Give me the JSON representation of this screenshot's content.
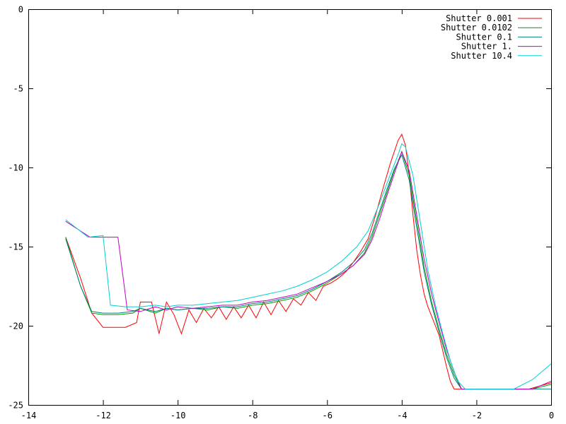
{
  "chart_data": {
    "type": "line",
    "title": "",
    "xlabel": "",
    "ylabel": "",
    "xlim": [
      -14,
      0
    ],
    "ylim": [
      -25,
      0
    ],
    "grid": false,
    "legend_position": "top-right",
    "x_ticks": [
      -14,
      -12,
      -10,
      -8,
      -6,
      -4,
      -2,
      0
    ],
    "y_ticks": [
      0,
      -5,
      -10,
      -15,
      -20,
      -25
    ],
    "x_tick_labels": [
      "-14",
      "-12",
      "-10",
      "-8",
      "-6",
      "-4",
      "-2",
      "0"
    ],
    "y_tick_labels": [
      "0",
      "-5",
      "-10",
      "-15",
      "-20",
      "-25"
    ],
    "series": [
      {
        "name": "Shutter 0.001",
        "color": "#ff0000",
        "x": [
          -13.0,
          -12.6,
          -12.3,
          -12.0,
          -11.8,
          -11.4,
          -11.1,
          -11.0,
          -10.7,
          -10.5,
          -10.3,
          -10.1,
          -9.9,
          -9.7,
          -9.5,
          -9.3,
          -9.1,
          -8.9,
          -8.7,
          -8.5,
          -8.3,
          -8.1,
          -7.9,
          -7.7,
          -7.5,
          -7.3,
          -7.1,
          -6.9,
          -6.7,
          -6.5,
          -6.3,
          -6.1,
          -5.9,
          -5.7,
          -5.5,
          -5.3,
          -5.1,
          -4.9,
          -4.7,
          -4.5,
          -4.3,
          -4.1,
          -4.0,
          -3.9,
          -3.8,
          -3.7,
          -3.6,
          -3.5,
          -3.4,
          -3.3,
          -3.2,
          -3.1,
          -3.0,
          -2.9,
          -2.8,
          -2.7,
          -2.6,
          -2.4,
          -2.2,
          -1.5,
          -1.0,
          -0.6,
          0.0
        ],
        "y": [
          -14.4,
          -17.0,
          -19.2,
          -20.1,
          -20.1,
          -20.1,
          -19.8,
          -18.5,
          -18.5,
          -20.5,
          -18.5,
          -19.3,
          -20.5,
          -19.0,
          -19.8,
          -18.9,
          -19.5,
          -18.8,
          -19.6,
          -18.8,
          -19.5,
          -18.7,
          -19.5,
          -18.5,
          -19.3,
          -18.4,
          -19.1,
          -18.3,
          -18.7,
          -17.9,
          -18.4,
          -17.5,
          -17.3,
          -17.0,
          -16.6,
          -16.0,
          -15.3,
          -14.5,
          -13.0,
          -11.3,
          -9.7,
          -8.3,
          -7.9,
          -8.6,
          -10.5,
          -13.0,
          -15.2,
          -16.8,
          -18.0,
          -18.8,
          -19.4,
          -20.0,
          -20.6,
          -21.6,
          -22.6,
          -23.5,
          -24.0,
          -24.0,
          -24.0,
          -24.0,
          -24.0,
          -24.0,
          -23.6
        ]
      },
      {
        "name": "Shutter 0.0102",
        "color": "#00a000",
        "x": [
          -13.0,
          -12.6,
          -12.3,
          -12.0,
          -11.6,
          -11.2,
          -11.0,
          -10.6,
          -10.3,
          -10.0,
          -9.6,
          -9.2,
          -8.8,
          -8.4,
          -8.0,
          -7.6,
          -7.2,
          -6.8,
          -6.4,
          -6.0,
          -5.6,
          -5.3,
          -5.0,
          -4.8,
          -4.6,
          -4.4,
          -4.2,
          -4.0,
          -3.8,
          -3.6,
          -3.4,
          -3.2,
          -3.0,
          -2.8,
          -2.6,
          -2.4,
          -1.5,
          -0.5,
          0.0
        ],
        "y": [
          -14.4,
          -17.5,
          -19.2,
          -19.3,
          -19.3,
          -19.2,
          -18.9,
          -19.2,
          -18.9,
          -19.0,
          -18.9,
          -19.0,
          -18.8,
          -18.9,
          -18.7,
          -18.6,
          -18.4,
          -18.2,
          -17.8,
          -17.3,
          -16.7,
          -16.2,
          -15.4,
          -14.4,
          -13.0,
          -11.6,
          -10.2,
          -9.0,
          -10.5,
          -13.4,
          -16.3,
          -18.5,
          -20.2,
          -21.8,
          -23.1,
          -24.0,
          -24.0,
          -24.0,
          -23.7
        ]
      },
      {
        "name": "Shutter 0.1",
        "color": "#008080",
        "x": [
          -13.0,
          -12.6,
          -12.3,
          -12.0,
          -11.6,
          -11.2,
          -11.0,
          -10.6,
          -10.3,
          -10.0,
          -9.6,
          -9.2,
          -8.8,
          -8.4,
          -8.0,
          -7.6,
          -7.2,
          -6.8,
          -6.4,
          -6.0,
          -5.6,
          -5.3,
          -5.0,
          -4.8,
          -4.6,
          -4.4,
          -4.2,
          -4.0,
          -3.8,
          -3.6,
          -3.4,
          -3.2,
          -3.0,
          -2.8,
          -2.6,
          -2.4,
          -1.5,
          -0.5,
          0.0
        ],
        "y": [
          -14.5,
          -17.5,
          -19.1,
          -19.2,
          -19.2,
          -19.1,
          -18.9,
          -19.1,
          -18.9,
          -19.0,
          -18.9,
          -18.9,
          -18.8,
          -18.8,
          -18.6,
          -18.5,
          -18.3,
          -18.1,
          -17.7,
          -17.2,
          -16.6,
          -16.0,
          -15.2,
          -14.2,
          -12.8,
          -11.4,
          -10.1,
          -9.2,
          -10.8,
          -13.8,
          -16.6,
          -18.7,
          -20.4,
          -22.0,
          -23.3,
          -24.0,
          -24.0,
          -24.0,
          -24.0
        ]
      },
      {
        "name": "Shutter 1.",
        "color": "#c000c0",
        "x": [
          -13.0,
          -12.35,
          -11.6,
          -11.35,
          -11.0,
          -10.6,
          -10.3,
          -10.0,
          -9.6,
          -9.2,
          -8.8,
          -8.4,
          -8.0,
          -7.6,
          -7.2,
          -6.8,
          -6.4,
          -6.0,
          -5.6,
          -5.3,
          -5.0,
          -4.8,
          -4.6,
          -4.4,
          -4.2,
          -4.0,
          -3.8,
          -3.6,
          -3.4,
          -3.2,
          -3.0,
          -2.8,
          -2.6,
          -2.4,
          -1.5,
          -0.5,
          0.0
        ],
        "y": [
          -13.4,
          -14.4,
          -14.4,
          -19.0,
          -19.1,
          -18.8,
          -19.0,
          -18.8,
          -18.9,
          -18.8,
          -18.7,
          -18.7,
          -18.5,
          -18.4,
          -18.2,
          -18.0,
          -17.6,
          -17.2,
          -16.7,
          -16.2,
          -15.5,
          -14.6,
          -13.3,
          -11.8,
          -10.4,
          -9.0,
          -10.2,
          -13.0,
          -15.8,
          -18.0,
          -19.8,
          -21.5,
          -22.9,
          -24.0,
          -24.0,
          -24.0,
          -23.5
        ]
      },
      {
        "name": "Shutter 10.4",
        "color": "#00d0d0",
        "x": [
          -13.0,
          -12.4,
          -12.0,
          -11.8,
          -11.4,
          -11.0,
          -10.6,
          -10.3,
          -10.0,
          -9.6,
          -9.2,
          -8.8,
          -8.4,
          -8.0,
          -7.6,
          -7.2,
          -6.8,
          -6.4,
          -6.0,
          -5.6,
          -5.2,
          -4.9,
          -4.6,
          -4.3,
          -4.1,
          -4.0,
          -3.9,
          -3.7,
          -3.5,
          -3.3,
          -3.1,
          -2.9,
          -2.7,
          -2.5,
          -2.3,
          -1.0,
          -0.5,
          0.0
        ],
        "y": [
          -13.3,
          -14.4,
          -14.3,
          -18.7,
          -18.8,
          -18.8,
          -18.7,
          -18.8,
          -18.7,
          -18.7,
          -18.6,
          -18.5,
          -18.4,
          -18.2,
          -18.0,
          -17.8,
          -17.5,
          -17.1,
          -16.6,
          -15.9,
          -15.0,
          -14.0,
          -12.3,
          -10.4,
          -9.2,
          -8.5,
          -8.7,
          -10.5,
          -13.5,
          -16.5,
          -18.7,
          -20.5,
          -22.2,
          -23.5,
          -24.0,
          -24.0,
          -23.4,
          -22.4
        ]
      }
    ]
  }
}
